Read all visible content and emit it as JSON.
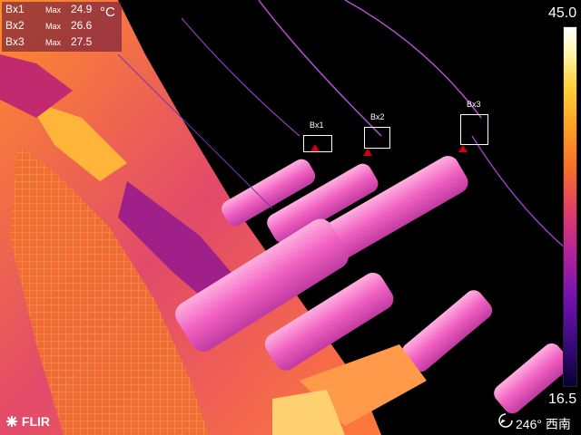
{
  "measurements": {
    "max_label": "Max",
    "unit": "°C",
    "rows": [
      {
        "name": "Bx1",
        "value": "24.9"
      },
      {
        "name": "Bx2",
        "value": "26.6"
      },
      {
        "name": "Bx3",
        "value": "27.5"
      }
    ]
  },
  "boxes": [
    {
      "label": "Bx1"
    },
    {
      "label": "Bx2"
    },
    {
      "label": "Bx3"
    }
  ],
  "scale": {
    "max": "45.0",
    "min": "16.5"
  },
  "brand": {
    "logo_text": "FLIR",
    "logo_icon": "flir-snowflake-icon"
  },
  "compass": {
    "text": "246° 西南",
    "icon": "compass-arrow-icon"
  },
  "colors": {
    "overlay_bg": "#5a0a3c",
    "marker": "#d40000",
    "text": "#ffffff"
  }
}
